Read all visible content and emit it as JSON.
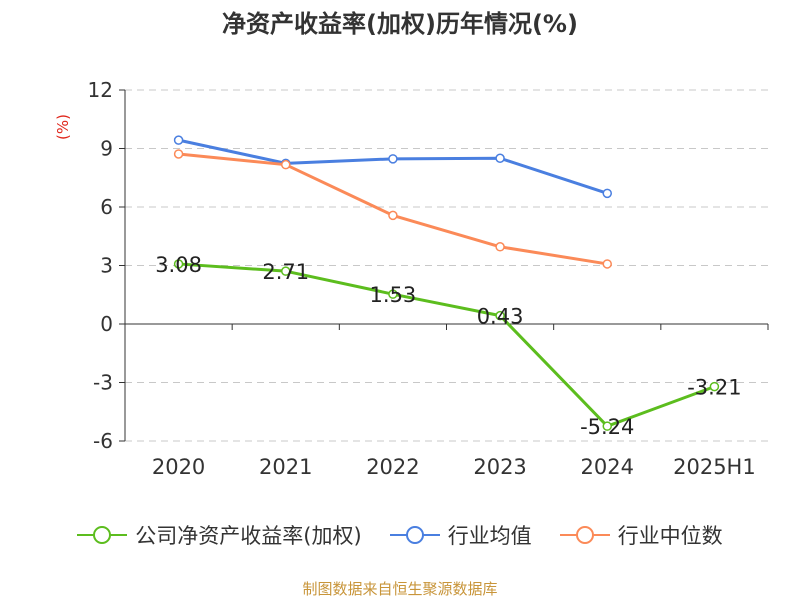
{
  "title": "净资产收益率(加权)历年情况(%)",
  "source_note": "制图数据来自恒生聚源数据库",
  "chart_data": {
    "type": "line",
    "title": "净资产收益率(加权)历年情况(%)",
    "ylabel": "(%)",
    "xlabel": "",
    "categories": [
      "2020",
      "2021",
      "2022",
      "2023",
      "2024",
      "2025H1"
    ],
    "ylim": [
      -6,
      12
    ],
    "yticks": [
      12,
      9,
      6,
      3,
      0,
      -3,
      -6
    ],
    "grid": true,
    "legend_position": "bottom",
    "series": [
      {
        "name": "公司净资产收益率(加权)",
        "color": "#5cbd1e",
        "values": [
          3.08,
          2.71,
          1.53,
          0.43,
          -5.24,
          -3.21
        ],
        "labels": [
          "3.08",
          "2.71",
          "1.53",
          "0.43",
          "-5.24",
          "-3.21"
        ]
      },
      {
        "name": "行业均值",
        "color": "#4a7fe0",
        "values": [
          9.43,
          8.24,
          8.47,
          8.5,
          6.7,
          null
        ]
      },
      {
        "name": "行业中位数",
        "color": "#fb8a58",
        "values": [
          8.72,
          8.17,
          5.57,
          3.96,
          3.08,
          null
        ]
      }
    ]
  }
}
